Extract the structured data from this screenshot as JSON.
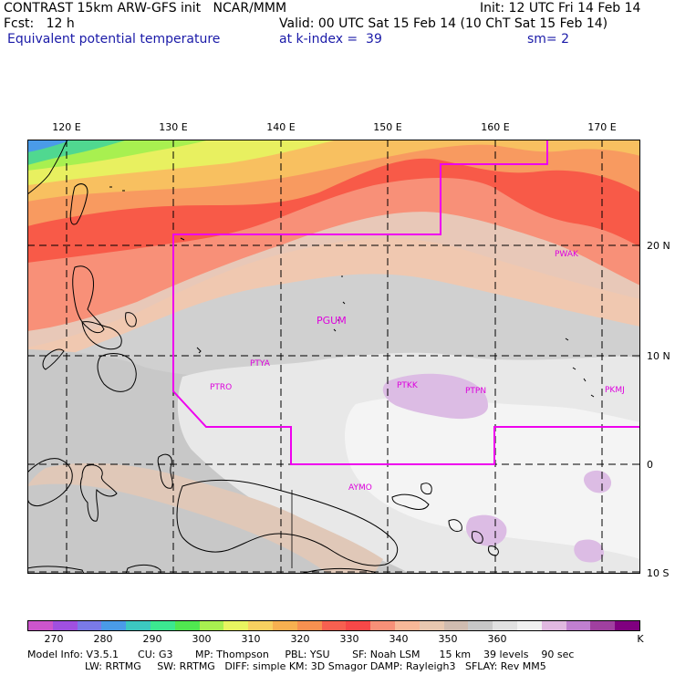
{
  "header": {
    "line1_left": "CONTRAST 15km ARW-GFS init   NCAR/MMM",
    "line1_right": "Init: 12 UTC Fri 14 Feb 14",
    "line2_left": "Fcst:   12 h",
    "line2_right": "Valid: 00 UTC Sat 15 Feb 14 (10 ChT Sat 15 Feb 14)",
    "line3_left": "Equivalent potential temperature",
    "line3_mid": "at k-index =  39",
    "line3_right": "sm= 2"
  },
  "lon_labels": [
    "120 E",
    "130 E",
    "140 E",
    "150 E",
    "160 E",
    "170 E"
  ],
  "lat_labels": [
    "20 N",
    "10 N",
    "0",
    "10 S"
  ],
  "stations": [
    "PGUM",
    "PTYA",
    "PTRO",
    "PTKK",
    "PTPN",
    "PKMJ",
    "PWAK",
    "AYMO"
  ],
  "colorbar": {
    "colors": [
      "#cc55cc",
      "#a050e0",
      "#7a7ae8",
      "#4a9be8",
      "#3cc8c0",
      "#3ce890",
      "#50e850",
      "#a8f050",
      "#e8f560",
      "#f8d060",
      "#f8b050",
      "#f89050",
      "#f86050",
      "#f84848",
      "#f89078",
      "#f8b898",
      "#e8c8b0",
      "#d0bcb0",
      "#c8c8c8",
      "#e0e0e0",
      "#f0f0f0",
      "#e0b8e0",
      "#c080d0",
      "#a040a0",
      "#800080"
    ],
    "labels": [
      "270",
      "280",
      "290",
      "300",
      "310",
      "320",
      "330",
      "340",
      "350",
      "360"
    ],
    "unit": "K"
  },
  "model_info": {
    "line1": "Model Info: V3.5.1      CU: G3       MP: Thompson     PBL: YSU       SF: Noah LSM      15 km    39 levels    90 sec",
    "line2": "                  LW: RRTMG     SW: RRTMG   DIFF: simple KM: 3D Smagor DAMP: Rayleigh3   SFLAY: Rev MM5"
  }
}
